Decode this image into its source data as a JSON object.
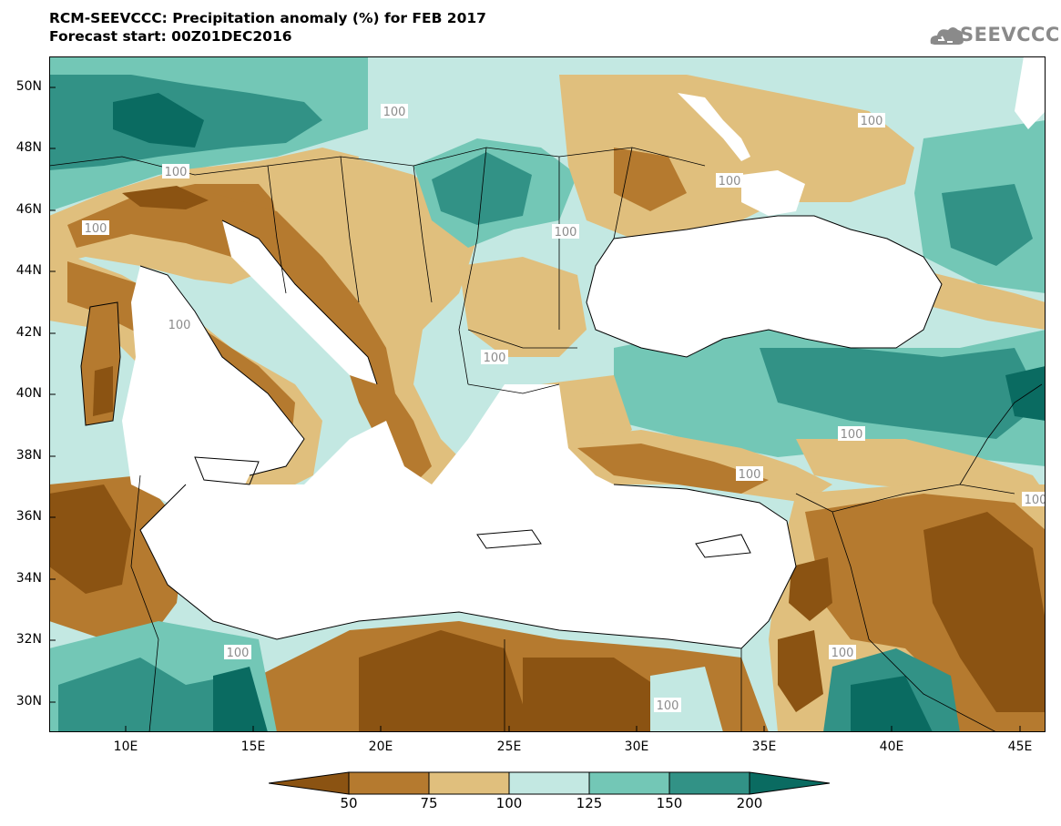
{
  "title": {
    "line1": "RCM-SEEVCCC: Precipitation anomaly (%) for FEB 2017",
    "line2": "Forecast start: 00Z01DEC2016"
  },
  "logo": {
    "text": "SEEVCCC",
    "icon": "cloud-logo-icon"
  },
  "map": {
    "lon_range": [
      7,
      46
    ],
    "lat_range": [
      29,
      51
    ],
    "lat_ticks": [
      "50N",
      "48N",
      "46N",
      "44N",
      "42N",
      "40N",
      "38N",
      "36N",
      "34N",
      "32N",
      "30N"
    ],
    "lon_ticks": [
      "10E",
      "15E",
      "20E",
      "25E",
      "30E",
      "35E",
      "40E",
      "45E"
    ],
    "contour_label": "100"
  },
  "legend": {
    "labels": [
      "50",
      "75",
      "100",
      "125",
      "150",
      "200"
    ],
    "colors": [
      "#8b5312",
      "#b57a2f",
      "#e0bf7d",
      "#c3e8e2",
      "#73c7b6",
      "#329286",
      "#0a6b61"
    ]
  }
}
